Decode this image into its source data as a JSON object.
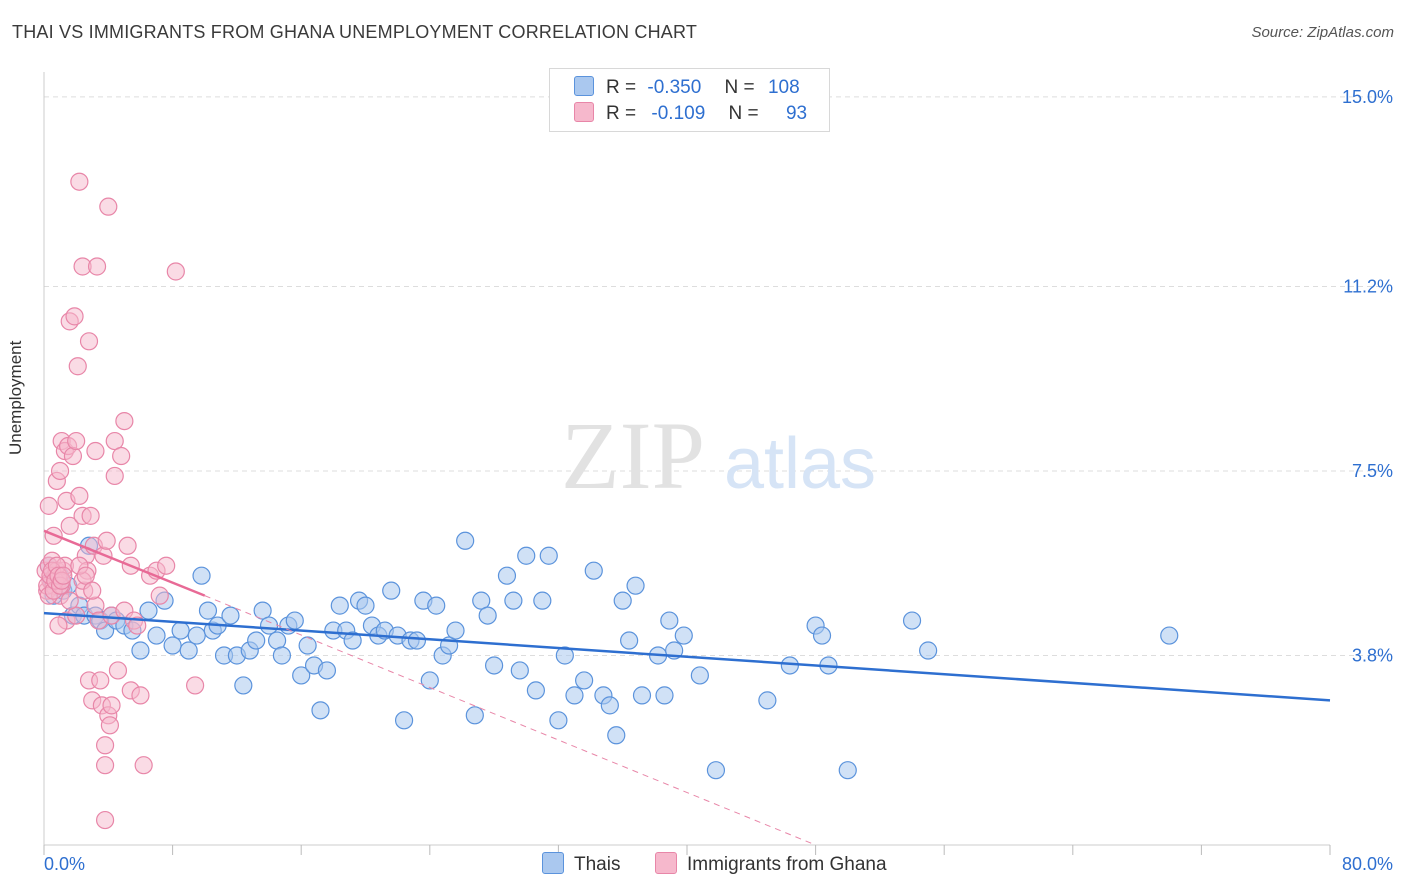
{
  "header": {
    "title": "THAI VS IMMIGRANTS FROM GHANA UNEMPLOYMENT CORRELATION CHART",
    "source": "Source: ZipAtlas.com"
  },
  "watermark": {
    "zip": "ZIP",
    "atlas": "atlas"
  },
  "legend": {
    "rows": [
      {
        "r_label": "R =",
        "r_value": "-0.350",
        "n_label": "N =",
        "n_value": "108"
      },
      {
        "r_label": "R =",
        "r_value": "-0.109",
        "n_label": "N =",
        "n_value": "93"
      }
    ]
  },
  "bottom_legend": {
    "series1": "Thais",
    "series2": "Immigrants from Ghana"
  },
  "colors": {
    "blue_fill": "#aac8ef",
    "blue_stroke": "#5b93dc",
    "blue_line": "#2e6fd0",
    "pink_fill": "#f6b8cc",
    "pink_stroke": "#e886a8",
    "pink_line": "#e86a96",
    "tick_label": "#2e6fd0",
    "grid": "#dddddd"
  },
  "chart_data": {
    "type": "scatter",
    "title": "THAI VS IMMIGRANTS FROM GHANA UNEMPLOYMENT CORRELATION CHART",
    "xlabel": "",
    "ylabel": "Unemployment",
    "xlim": [
      0,
      80
    ],
    "ylim": [
      0,
      15.5
    ],
    "x_tick_labels": [
      "0.0%",
      "80.0%"
    ],
    "y_ticks": [
      3.8,
      7.5,
      11.2,
      15.0
    ],
    "y_tick_labels": [
      "3.8%",
      "7.5%",
      "11.2%",
      "15.0%"
    ],
    "grid": true,
    "series": [
      {
        "name": "Thais",
        "R": -0.35,
        "N": 108,
        "trend": {
          "x0": 0,
          "y0": 4.65,
          "x1": 80,
          "y1": 2.9
        },
        "points": [
          [
            0.3,
            5.6
          ],
          [
            0.5,
            5.3
          ],
          [
            0.6,
            5.0
          ],
          [
            0.8,
            5.3
          ],
          [
            1.0,
            5.4
          ],
          [
            1.2,
            5.1
          ],
          [
            1.5,
            5.2
          ],
          [
            1.8,
            4.6
          ],
          [
            2.2,
            4.8
          ],
          [
            2.5,
            4.6
          ],
          [
            2.8,
            6.0
          ],
          [
            3.2,
            4.6
          ],
          [
            3.5,
            4.5
          ],
          [
            3.8,
            4.3
          ],
          [
            4.2,
            4.6
          ],
          [
            4.5,
            4.5
          ],
          [
            5.0,
            4.4
          ],
          [
            5.5,
            4.3
          ],
          [
            6.0,
            3.9
          ],
          [
            6.5,
            4.7
          ],
          [
            7.0,
            4.2
          ],
          [
            7.5,
            4.9
          ],
          [
            8.0,
            4.0
          ],
          [
            8.5,
            4.3
          ],
          [
            9.0,
            3.9
          ],
          [
            9.5,
            4.2
          ],
          [
            9.8,
            5.4
          ],
          [
            10.2,
            4.7
          ],
          [
            10.5,
            4.3
          ],
          [
            10.8,
            4.4
          ],
          [
            11.2,
            3.8
          ],
          [
            11.6,
            4.6
          ],
          [
            12.0,
            3.8
          ],
          [
            12.4,
            3.2
          ],
          [
            12.8,
            3.9
          ],
          [
            13.2,
            4.1
          ],
          [
            13.6,
            4.7
          ],
          [
            14.0,
            4.4
          ],
          [
            14.5,
            4.1
          ],
          [
            14.8,
            3.8
          ],
          [
            15.2,
            4.4
          ],
          [
            15.6,
            4.5
          ],
          [
            16.0,
            3.4
          ],
          [
            16.4,
            4.0
          ],
          [
            16.8,
            3.6
          ],
          [
            17.2,
            2.7
          ],
          [
            17.6,
            3.5
          ],
          [
            18.0,
            4.3
          ],
          [
            18.4,
            4.8
          ],
          [
            18.8,
            4.3
          ],
          [
            19.2,
            4.1
          ],
          [
            19.6,
            4.9
          ],
          [
            20.0,
            4.8
          ],
          [
            20.4,
            4.4
          ],
          [
            20.8,
            4.2
          ],
          [
            21.2,
            4.3
          ],
          [
            21.6,
            5.1
          ],
          [
            22.0,
            4.2
          ],
          [
            22.4,
            2.5
          ],
          [
            22.8,
            4.1
          ],
          [
            23.2,
            4.1
          ],
          [
            23.6,
            4.9
          ],
          [
            24.0,
            3.3
          ],
          [
            24.4,
            4.8
          ],
          [
            24.8,
            3.8
          ],
          [
            25.2,
            4.0
          ],
          [
            25.6,
            4.3
          ],
          [
            26.2,
            6.1
          ],
          [
            26.8,
            2.6
          ],
          [
            27.2,
            4.9
          ],
          [
            27.6,
            4.6
          ],
          [
            28.0,
            3.6
          ],
          [
            28.8,
            5.4
          ],
          [
            29.2,
            4.9
          ],
          [
            29.6,
            3.5
          ],
          [
            30.0,
            5.8
          ],
          [
            30.6,
            3.1
          ],
          [
            31.0,
            4.9
          ],
          [
            31.4,
            5.8
          ],
          [
            32.0,
            2.5
          ],
          [
            32.4,
            3.8
          ],
          [
            33.0,
            3.0
          ],
          [
            33.6,
            3.3
          ],
          [
            34.2,
            5.5
          ],
          [
            34.8,
            3.0
          ],
          [
            35.2,
            2.8
          ],
          [
            35.6,
            2.2
          ],
          [
            36.0,
            4.9
          ],
          [
            36.4,
            4.1
          ],
          [
            36.8,
            5.2
          ],
          [
            37.2,
            3.0
          ],
          [
            38.2,
            3.8
          ],
          [
            38.6,
            3.0
          ],
          [
            38.9,
            4.5
          ],
          [
            39.2,
            3.9
          ],
          [
            39.8,
            4.2
          ],
          [
            40.8,
            3.4
          ],
          [
            41.8,
            1.5
          ],
          [
            45.0,
            2.9
          ],
          [
            46.4,
            3.6
          ],
          [
            48.0,
            4.4
          ],
          [
            48.4,
            4.2
          ],
          [
            48.8,
            3.6
          ],
          [
            50.0,
            1.5
          ],
          [
            54.0,
            4.5
          ],
          [
            55.0,
            3.9
          ],
          [
            70.0,
            4.2
          ]
        ]
      },
      {
        "name": "Immigrants from Ghana",
        "R": -0.109,
        "N": 93,
        "trend": {
          "x0": 0,
          "y0": 6.3,
          "x1": 10,
          "y1": 5.0
        },
        "trend_ext": {
          "x0": 10,
          "y0": 5.0,
          "x1": 48,
          "y1": 0
        },
        "points": [
          [
            0.1,
            5.5
          ],
          [
            0.2,
            5.1
          ],
          [
            0.3,
            5.6
          ],
          [
            0.4,
            5.3
          ],
          [
            0.5,
            5.7
          ],
          [
            0.6,
            5.2
          ],
          [
            0.7,
            5.4
          ],
          [
            0.8,
            5.5
          ],
          [
            0.9,
            5.3
          ],
          [
            1.0,
            5.0
          ],
          [
            1.1,
            5.2
          ],
          [
            1.2,
            5.5
          ],
          [
            1.3,
            5.6
          ],
          [
            0.2,
            5.2
          ],
          [
            0.3,
            5.0
          ],
          [
            0.4,
            5.4
          ],
          [
            0.5,
            5.5
          ],
          [
            0.6,
            5.1
          ],
          [
            0.7,
            5.3
          ],
          [
            0.8,
            5.6
          ],
          [
            0.9,
            5.4
          ],
          [
            1.0,
            5.2
          ],
          [
            1.1,
            5.3
          ],
          [
            1.2,
            5.4
          ],
          [
            0.3,
            6.8
          ],
          [
            0.6,
            6.2
          ],
          [
            0.8,
            7.3
          ],
          [
            1.0,
            7.5
          ],
          [
            1.1,
            8.1
          ],
          [
            1.3,
            7.9
          ],
          [
            1.4,
            6.9
          ],
          [
            1.5,
            8.0
          ],
          [
            1.6,
            6.4
          ],
          [
            1.6,
            10.5
          ],
          [
            1.8,
            7.8
          ],
          [
            1.9,
            10.6
          ],
          [
            2.0,
            8.1
          ],
          [
            2.1,
            9.6
          ],
          [
            2.2,
            7.0
          ],
          [
            2.4,
            6.6
          ],
          [
            2.2,
            13.3
          ],
          [
            2.4,
            11.6
          ],
          [
            2.5,
            5.1
          ],
          [
            2.6,
            5.8
          ],
          [
            2.7,
            5.5
          ],
          [
            2.8,
            10.1
          ],
          [
            2.8,
            3.3
          ],
          [
            2.9,
            6.6
          ],
          [
            3.0,
            2.9
          ],
          [
            3.1,
            6.0
          ],
          [
            3.2,
            7.9
          ],
          [
            3.2,
            4.8
          ],
          [
            3.3,
            11.6
          ],
          [
            3.4,
            4.5
          ],
          [
            3.5,
            3.3
          ],
          [
            3.6,
            2.8
          ],
          [
            3.7,
            5.8
          ],
          [
            3.8,
            1.6
          ],
          [
            3.8,
            2.0
          ],
          [
            3.9,
            6.1
          ],
          [
            4.0,
            12.8
          ],
          [
            4.0,
            2.6
          ],
          [
            4.1,
            2.4
          ],
          [
            4.2,
            2.8
          ],
          [
            4.2,
            4.6
          ],
          [
            4.4,
            8.1
          ],
          [
            4.4,
            7.4
          ],
          [
            4.6,
            3.5
          ],
          [
            4.8,
            7.8
          ],
          [
            5.0,
            8.5
          ],
          [
            5.0,
            4.7
          ],
          [
            5.2,
            6.0
          ],
          [
            5.4,
            5.6
          ],
          [
            5.4,
            3.1
          ],
          [
            5.6,
            4.5
          ],
          [
            5.8,
            4.4
          ],
          [
            6.0,
            3.0
          ],
          [
            6.2,
            1.6
          ],
          [
            6.6,
            5.4
          ],
          [
            7.0,
            5.5
          ],
          [
            7.2,
            5.0
          ],
          [
            7.6,
            5.6
          ],
          [
            8.2,
            11.5
          ],
          [
            9.4,
            3.2
          ],
          [
            3.8,
            0.5
          ],
          [
            1.4,
            4.5
          ],
          [
            2.0,
            4.6
          ],
          [
            2.4,
            5.3
          ],
          [
            0.9,
            4.4
          ],
          [
            1.6,
            4.9
          ],
          [
            2.2,
            5.6
          ],
          [
            2.6,
            5.4
          ],
          [
            3.0,
            5.1
          ]
        ]
      }
    ]
  }
}
